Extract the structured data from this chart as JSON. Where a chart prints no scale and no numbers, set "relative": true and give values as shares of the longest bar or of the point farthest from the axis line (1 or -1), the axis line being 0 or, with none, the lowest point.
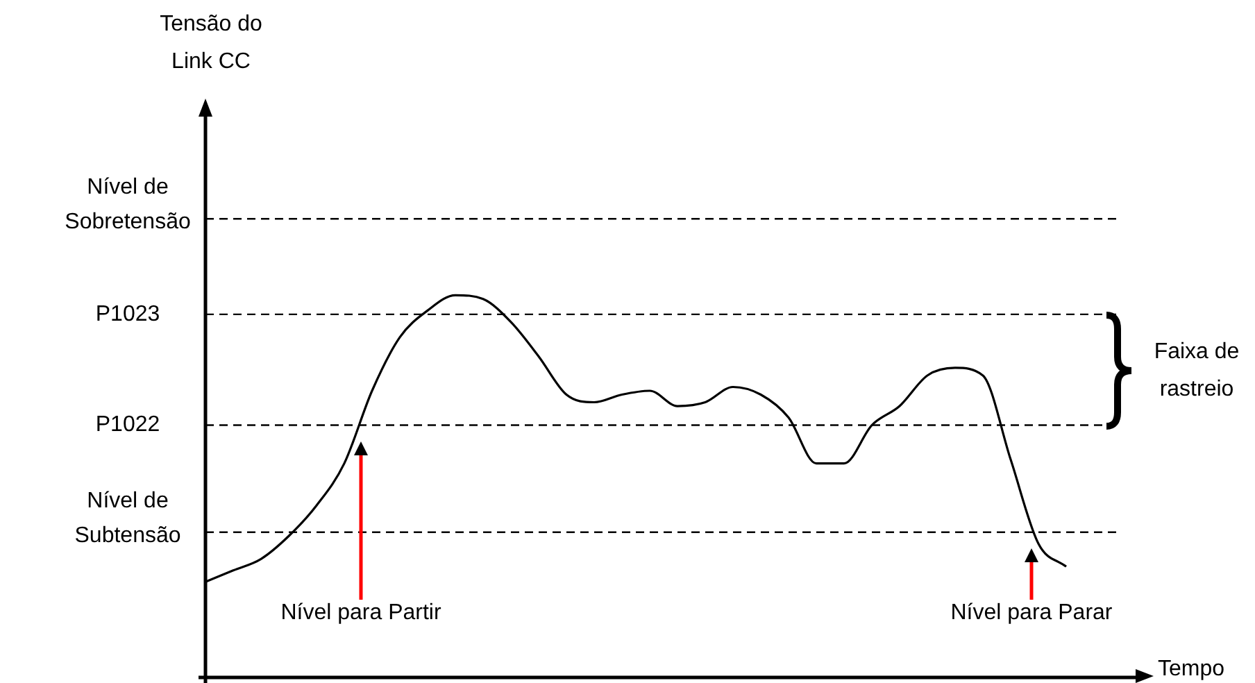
{
  "chart_data": {
    "type": "line",
    "relative": true,
    "xlabel": "Tempo",
    "categories": [
      null,
      null,
      null,
      null,
      null,
      null,
      null,
      null,
      null,
      null,
      null,
      null,
      null,
      null,
      null,
      null,
      null,
      null,
      null,
      null,
      null,
      null,
      null,
      null,
      null,
      null,
      null,
      null,
      null,
      null,
      null,
      null
    ],
    "series": [
      {
        "color": "#000000",
        "values": [
          0.25,
          0.28,
          0.31,
          0.37,
          0.45,
          0.56,
          0.75,
          0.89,
          0.96,
          1,
          0.99,
          0.93,
          0.84,
          0.74,
          0.72,
          0.74,
          0.75,
          0.71,
          0.72,
          0.76,
          0.74,
          0.68,
          0.56,
          0.56,
          0.66,
          0.71,
          0.79,
          0.81,
          0.79,
          0.57,
          0.35,
          0.29
        ]
      }
    ],
    "ref_lines": [
      {
        "axis": "y",
        "value": 1.2,
        "label": "Nível de\nSobretensão",
        "color": "#000000",
        "line_style": "dashed"
      },
      {
        "axis": "y",
        "value": 0.95,
        "label": "P1023",
        "color": "#000000",
        "line_style": "dashed"
      },
      {
        "axis": "y",
        "value": 0.66,
        "label": "P1022",
        "color": "#000000",
        "line_style": "dashed"
      },
      {
        "axis": "y",
        "value": 0.38,
        "label": "Nível de\nSubtensão",
        "color": "#000000",
        "line_style": "dashed"
      }
    ],
    "annotations": [
      "Tensão do\nLink CC",
      "Faixa de\nrastreio",
      "Nível para Partir",
      "Nível para Parar"
    ],
    "legend": false,
    "marker": "none",
    "line_style": "solid"
  }
}
